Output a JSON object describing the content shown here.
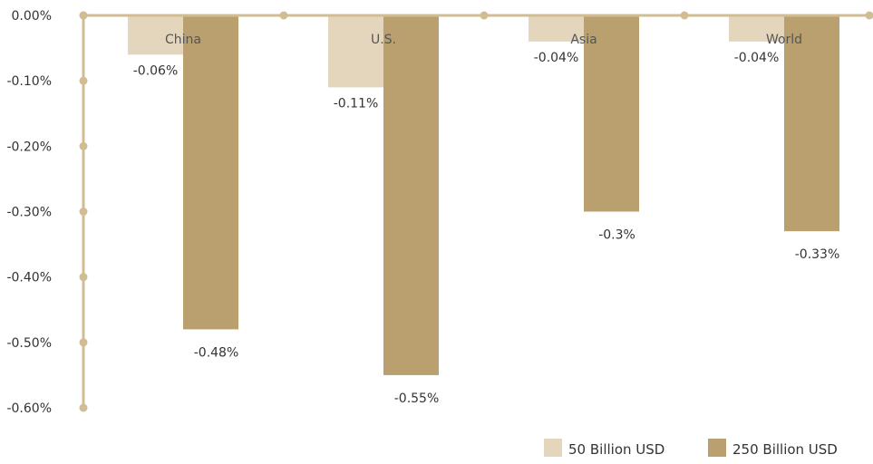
{
  "chart_data": {
    "type": "bar",
    "title": "",
    "xlabel": "",
    "ylabel": "",
    "categories": [
      "China",
      "U.S.",
      "Asia",
      "World"
    ],
    "series": [
      {
        "name": "50 Billion USD",
        "values": [
          -0.06,
          -0.11,
          -0.04,
          -0.04
        ],
        "labels": [
          "-0.06%",
          "-0.11%",
          "-0.04%",
          "-0.04%"
        ]
      },
      {
        "name": "250 Billion USD",
        "values": [
          -0.48,
          -0.55,
          -0.3,
          -0.33
        ],
        "labels": [
          "-0.48%",
          "-0.55%",
          "-0.3%",
          "-0.33%"
        ]
      }
    ],
    "y_ticks": [
      0,
      -0.1,
      -0.2,
      -0.3,
      -0.4,
      -0.5,
      -0.6
    ],
    "y_tick_labels": [
      "0.00%",
      "-0.10%",
      "-0.20%",
      "-0.30%",
      "-0.40%",
      "-0.50%",
      "-0.60%"
    ],
    "ylim": [
      -0.6,
      0
    ],
    "grid": false,
    "legend_position": "bottom-right",
    "colors": {
      "series": [
        "#e3d6bd",
        "#b9a06e"
      ],
      "axis": "#d1bd93",
      "text": "#333333"
    }
  }
}
